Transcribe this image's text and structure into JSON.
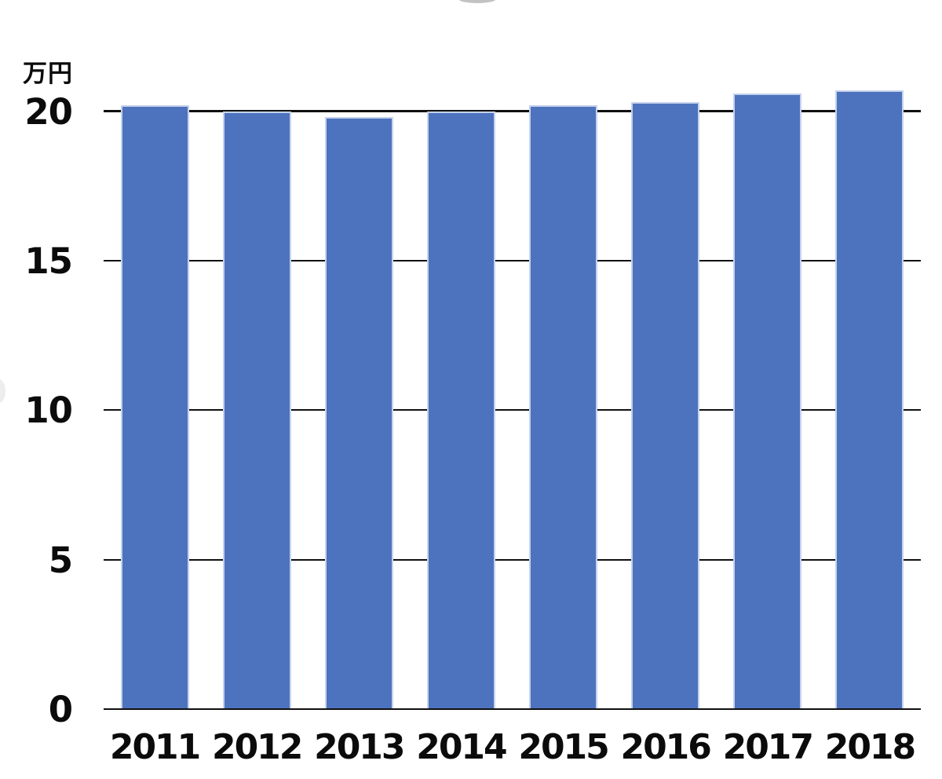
{
  "chart_data": {
    "type": "bar",
    "title": "",
    "unit": "万円",
    "ylabel": "万円",
    "xlabel": "",
    "categories": [
      "2011",
      "2012",
      "2013",
      "2014",
      "2015",
      "2016",
      "2017",
      "2018"
    ],
    "values": [
      20.2,
      20.0,
      19.8,
      20.0,
      20.2,
      20.3,
      20.6,
      20.7
    ],
    "yticks": [
      0,
      5,
      10,
      15,
      20
    ],
    "ylim": [
      0,
      21
    ],
    "grid": true,
    "legend_position": "none",
    "bar_color": "#4D73BE",
    "bar_edge_color": "#C6D2EC",
    "axis_color": "#101010",
    "text_color": "#0b0b0b"
  }
}
